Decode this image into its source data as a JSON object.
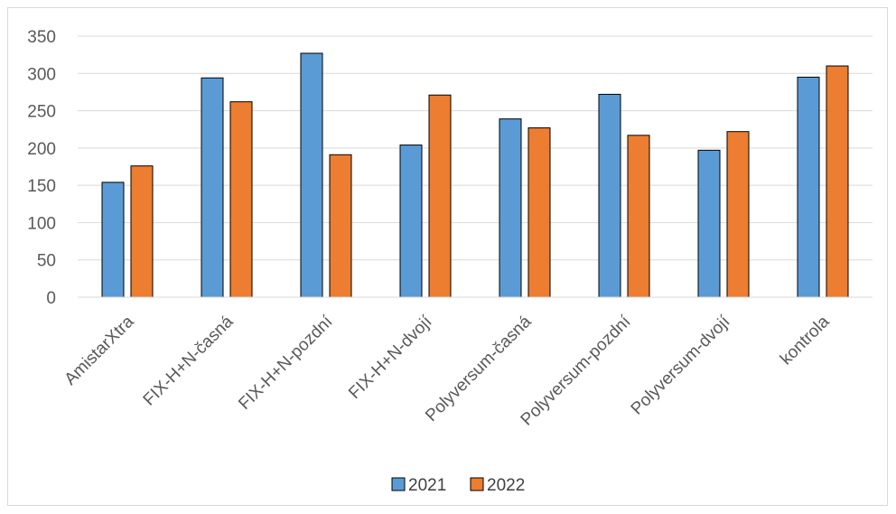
{
  "chart_data": {
    "type": "bar",
    "title": "",
    "xlabel": "",
    "ylabel": "",
    "categories": [
      "AmistarXtra",
      "FIX-H+N-časná",
      "FIX-H+N-pozdní",
      "FIX-H+N-dvojí",
      "Polyversum-časná",
      "Polyversum-pozdní",
      "Polyversum-dvojí",
      "kontrola"
    ],
    "series": [
      {
        "name": "2021",
        "color": "#5b9bd5",
        "values": [
          154,
          294,
          327,
          204,
          239,
          272,
          197,
          295
        ]
      },
      {
        "name": "2022",
        "color": "#ed7d31",
        "values": [
          176,
          262,
          191,
          271,
          227,
          217,
          222,
          310
        ]
      }
    ],
    "ylim": [
      0,
      350
    ],
    "yticks": [
      0,
      50,
      100,
      150,
      200,
      250,
      300,
      350
    ],
    "grid": true,
    "legend_position": "bottom"
  }
}
